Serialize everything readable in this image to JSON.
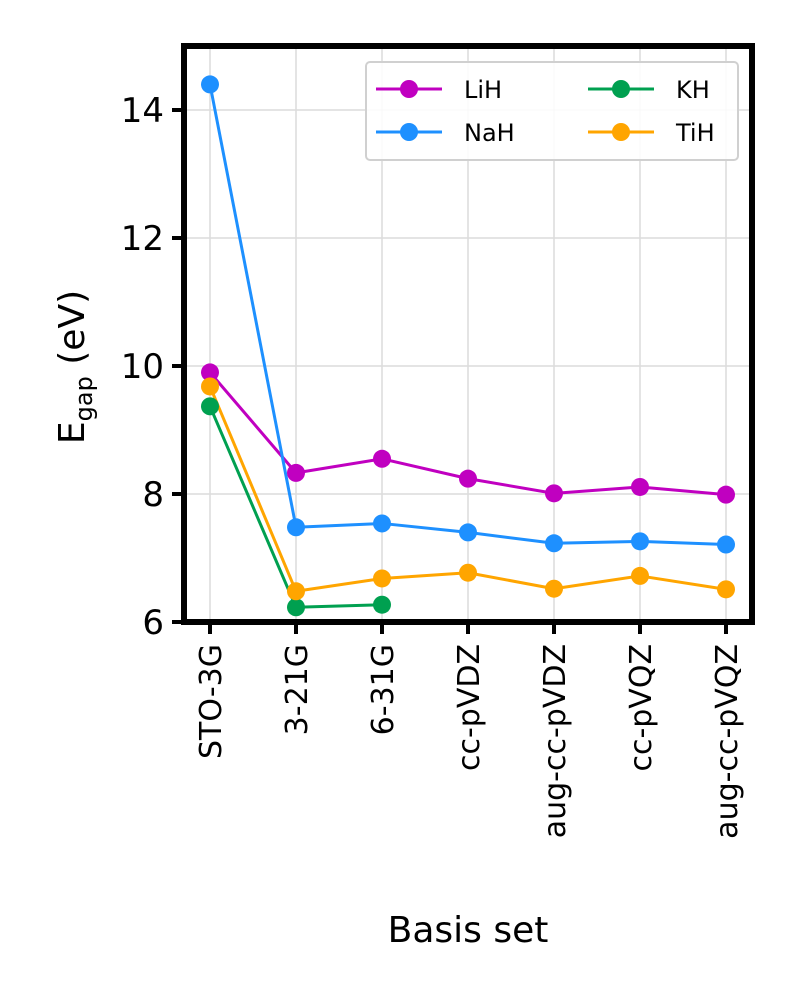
{
  "chart_data": {
    "type": "line",
    "categories": [
      "STO-3G",
      "3-21G",
      "6-31G",
      "cc-pVDZ",
      "aug-cc-pVDZ",
      "cc-pVQZ",
      "aug-cc-pVQZ"
    ],
    "series": [
      {
        "name": "LiH",
        "color": "#c000c0",
        "values": [
          9.9,
          8.33,
          8.55,
          8.24,
          8.01,
          8.11,
          7.99
        ]
      },
      {
        "name": "NaH",
        "color": "#1e90ff",
        "values": [
          14.4,
          7.48,
          7.54,
          7.4,
          7.23,
          7.26,
          7.21
        ]
      },
      {
        "name": "KH",
        "color": "#00a050",
        "values": [
          9.37,
          6.23,
          6.27,
          null,
          null,
          null,
          null
        ]
      },
      {
        "name": "TiH",
        "color": "#ffa500",
        "values": [
          9.68,
          6.48,
          6.68,
          6.77,
          6.52,
          6.72,
          6.51
        ]
      }
    ],
    "xlabel": "Basis set",
    "ylabel_main": "E",
    "ylabel_sub": "gap",
    "ylabel_unit": " (eV)",
    "ylim": [
      6,
      15
    ],
    "yticks": [
      6,
      8,
      10,
      12,
      14
    ],
    "grid": true,
    "legend": {
      "placement": "top-right",
      "columns": 2
    }
  }
}
